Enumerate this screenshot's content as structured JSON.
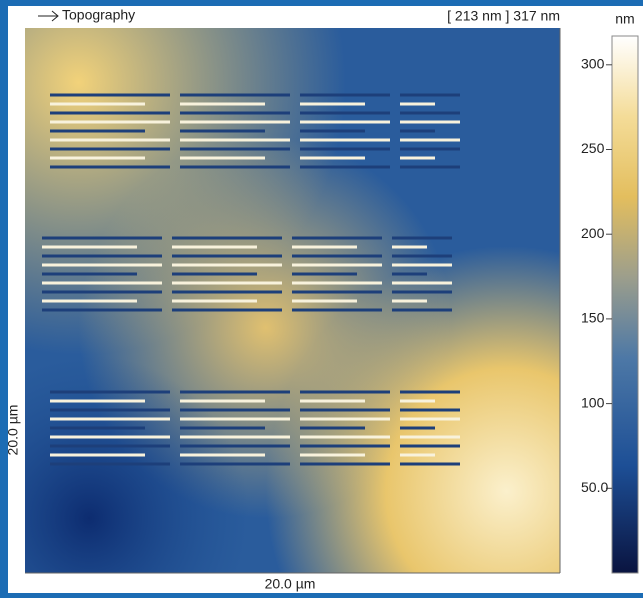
{
  "header": {
    "channel": "Topography",
    "range": "[ 213 nm ] 317 nm"
  },
  "image": {
    "x_label": "20.0 µm",
    "y_label": "20.0 µm"
  },
  "colorbar": {
    "unit": "nm",
    "lim": [
      0,
      317
    ],
    "ticks": [
      300,
      250,
      200,
      150,
      100,
      {
        "value": 50,
        "label": "50.0"
      }
    ]
  }
}
